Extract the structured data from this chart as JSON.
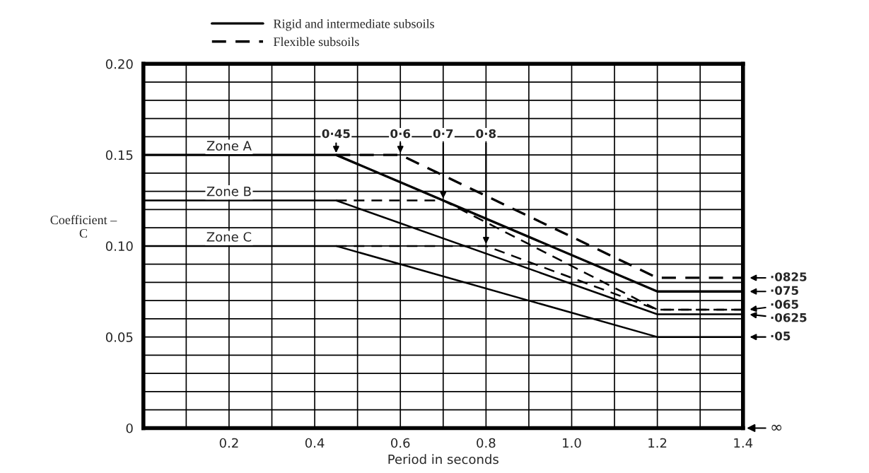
{
  "chart_data": {
    "type": "line",
    "xlabel": "Period in seconds",
    "ylabel": "Coefficient –\nC",
    "xlim": [
      0,
      1.4
    ],
    "ylim": [
      0,
      0.2
    ],
    "xticks": [
      {
        "value": 0.1,
        "label": null
      },
      0.2,
      {
        "value": 0.3,
        "label": null
      },
      0.4,
      {
        "value": 0.5,
        "label": null
      },
      0.6,
      {
        "value": 0.7,
        "label": null
      },
      0.8,
      {
        "value": 0.9,
        "label": null
      },
      {
        "value": 1.0,
        "label": "1.0"
      },
      {
        "value": 1.1,
        "label": null
      },
      1.2,
      {
        "value": 1.3,
        "label": null
      },
      1.4
    ],
    "yticks": [
      0,
      {
        "value": 0.01,
        "label": null
      },
      {
        "value": 0.02,
        "label": null
      },
      {
        "value": 0.03,
        "label": null
      },
      {
        "value": 0.04,
        "label": null
      },
      0.05,
      {
        "value": 0.06,
        "label": null
      },
      {
        "value": 0.07,
        "label": null
      },
      {
        "value": 0.08,
        "label": null
      },
      {
        "value": 0.09,
        "label": null
      },
      {
        "value": 0.1,
        "label": "0.10"
      },
      {
        "value": 0.11,
        "label": null
      },
      {
        "value": 0.12,
        "label": null
      },
      {
        "value": 0.13,
        "label": null
      },
      {
        "value": 0.14,
        "label": null
      },
      0.15,
      {
        "value": 0.16,
        "label": null
      },
      {
        "value": 0.17,
        "label": null
      },
      {
        "value": 0.18,
        "label": null
      },
      {
        "value": 0.19,
        "label": null
      },
      {
        "value": 0.2,
        "label": "0.20"
      }
    ],
    "grid": true,
    "legend": "top",
    "marker": "none",
    "series": [
      {
        "name": "Rigid and intermediate subsoils",
        "color": "#000000",
        "line_style": "solid",
        "x": [
          0,
          0.45,
          1.2,
          1.4
        ],
        "values": [
          0.15,
          0.15,
          0.075,
          0.075
        ]
      },
      {
        "name": "Flexible subsoils",
        "color": "#000000",
        "line_style": "dashed",
        "x": [
          0.45,
          0.6,
          1.2,
          1.4
        ],
        "values": [
          0.15,
          0.15,
          0.0825,
          0.0825
        ]
      },
      {
        "color": "#000000",
        "line_style": "solid",
        "x": [
          0,
          0.45,
          1.2,
          1.4
        ],
        "values": [
          0.125,
          0.125,
          0.0625,
          0.0625
        ]
      },
      {
        "color": "#000000",
        "line_style": "dashed",
        "x": [
          0.45,
          0.7,
          1.2,
          1.4
        ],
        "values": [
          0.125,
          0.125,
          0.065,
          0.065
        ]
      },
      {
        "color": "#000000",
        "line_style": "solid",
        "x": [
          0,
          0.45,
          1.2,
          1.4
        ],
        "values": [
          0.1,
          0.1,
          0.05,
          0.05
        ]
      },
      {
        "color": "#000000",
        "line_style": "dashed",
        "x": [
          0.45,
          0.8,
          1.2,
          1.4
        ],
        "values": [
          0.1,
          0.1,
          0.065,
          0.065
        ]
      }
    ],
    "annotations": [
      {
        "text": "Zone A",
        "x": 0.2,
        "y": 0.15
      },
      {
        "text": "Zone B",
        "x": 0.2,
        "y": 0.125
      },
      {
        "text": "Zone C",
        "x": 0.2,
        "y": 0.1
      },
      {
        "text": "0·45",
        "x": 0.45,
        "y": 0.15
      },
      {
        "text": "0·6",
        "x": 0.6,
        "y": 0.15
      },
      {
        "text": "0·7",
        "x": 0.7,
        "y": 0.125
      },
      {
        "text": "0·8",
        "x": 0.8,
        "y": 0.1
      },
      {
        "text": "·0825",
        "x": 1.4,
        "y": 0.0825
      },
      {
        "text": "·075",
        "x": 1.4,
        "y": 0.075
      },
      {
        "text": "·065",
        "x": 1.4,
        "y": 0.065
      },
      {
        "text": "·0625",
        "x": 1.4,
        "y": 0.0625
      },
      {
        "text": "·05",
        "x": 1.4,
        "y": 0.05
      },
      "∞"
    ]
  }
}
